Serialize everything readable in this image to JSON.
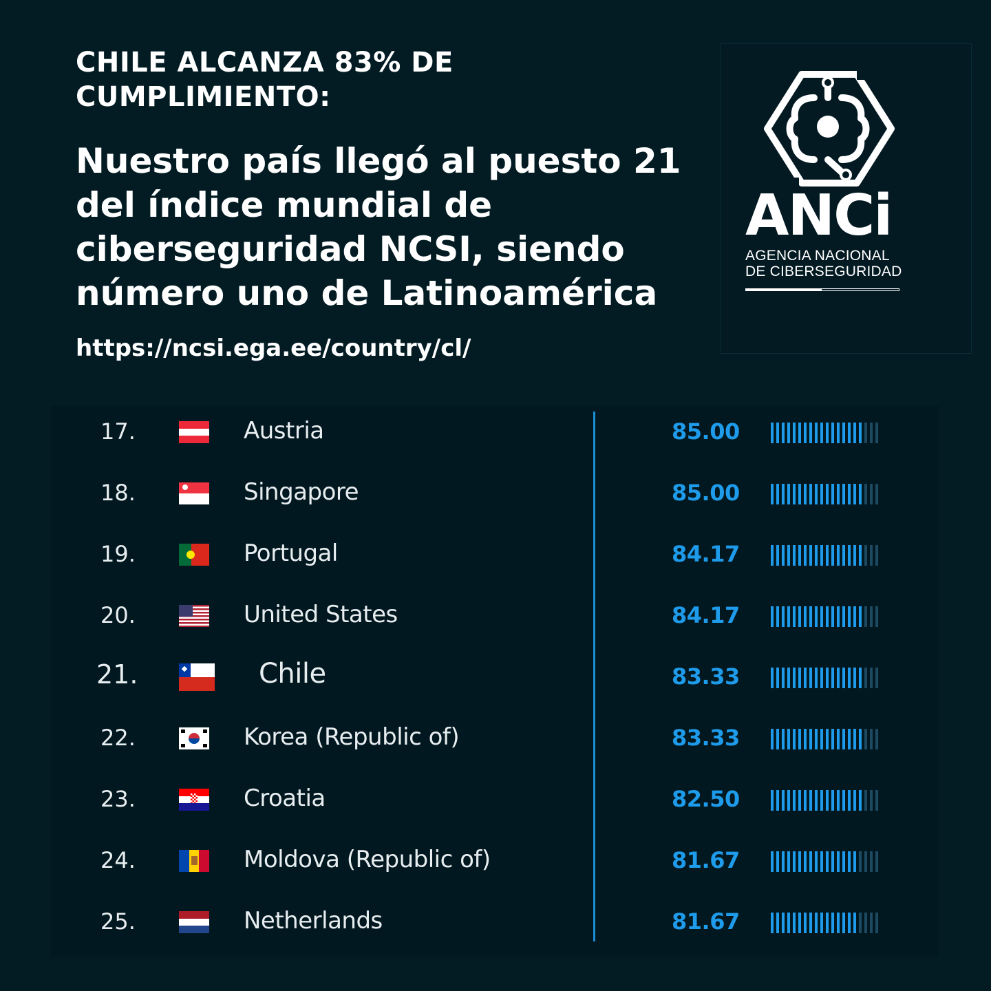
{
  "header": {
    "kicker": "CHILE ALCANZA 83% DE CUMPLIMIENTO:",
    "headline": "Nuestro país llegó al puesto 21 del índice mundial de ciberseguridad NCSI, siendo número uno de Latinoamérica",
    "url": "https://ncsi.ega.ee/country/cl/"
  },
  "logo": {
    "wordmark": "ANCi",
    "subtitle_line1": "AGENCIA NACIONAL",
    "subtitle_line2": "DE CIBERSEGURIDAD"
  },
  "colors": {
    "background": "#031c24",
    "accent": "#1e9bea",
    "bar_off": "#1c4a63"
  },
  "ranking": {
    "max_score": 100,
    "rows": [
      {
        "rank": "17.",
        "country": "Austria",
        "score": "85.00",
        "value": 85.0,
        "flag": "austria"
      },
      {
        "rank": "18.",
        "country": "Singapore",
        "score": "85.00",
        "value": 85.0,
        "flag": "singapore"
      },
      {
        "rank": "19.",
        "country": "Portugal",
        "score": "84.17",
        "value": 84.17,
        "flag": "portugal"
      },
      {
        "rank": "20.",
        "country": "United States",
        "score": "84.17",
        "value": 84.17,
        "flag": "usa"
      },
      {
        "rank": "21.",
        "country": "Chile",
        "score": "83.33",
        "value": 83.33,
        "flag": "chile",
        "highlight": true
      },
      {
        "rank": "22.",
        "country": "Korea (Republic of)",
        "score": "83.33",
        "value": 83.33,
        "flag": "korea"
      },
      {
        "rank": "23.",
        "country": "Croatia",
        "score": "82.50",
        "value": 82.5,
        "flag": "croatia"
      },
      {
        "rank": "24.",
        "country": "Moldova (Republic of)",
        "score": "81.67",
        "value": 81.67,
        "flag": "moldova"
      },
      {
        "rank": "25.",
        "country": "Netherlands",
        "score": "81.67",
        "value": 81.67,
        "flag": "netherlands"
      }
    ]
  }
}
